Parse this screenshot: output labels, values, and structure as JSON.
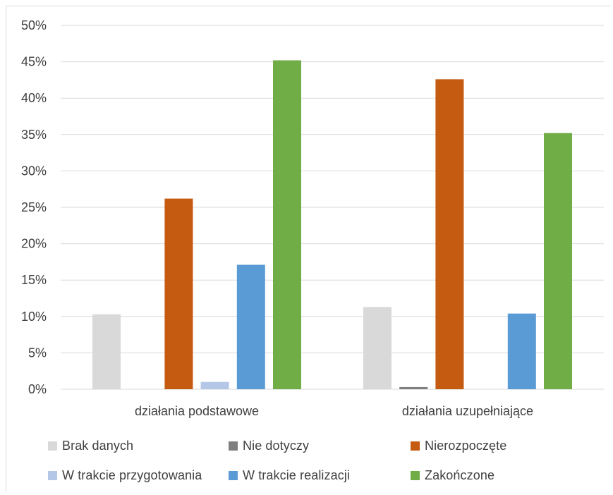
{
  "chart_data": {
    "type": "bar",
    "categories": [
      "działania podstawowe",
      "działania uzupełniające"
    ],
    "series": [
      {
        "name": "Brak danych",
        "values": [
          10.3,
          11.3
        ],
        "color": "#d9d9d9"
      },
      {
        "name": "Nie dotyczy",
        "values": [
          0,
          0.3
        ],
        "color": "#7f7f7f"
      },
      {
        "name": "Nierozpoczęte",
        "values": [
          26.2,
          42.6
        ],
        "color": "#c55a11"
      },
      {
        "name": "W trakcie przygotowania",
        "values": [
          1.0,
          0
        ],
        "color": "#b4c7e7"
      },
      {
        "name": "W trakcie realizacji",
        "values": [
          17.1,
          10.4
        ],
        "color": "#5b9bd5"
      },
      {
        "name": "Zakończone",
        "values": [
          45.2,
          35.2
        ],
        "color": "#70ad47"
      }
    ],
    "y_ticks": [
      "0%",
      "5%",
      "10%",
      "15%",
      "20%",
      "25%",
      "30%",
      "35%",
      "40%",
      "45%",
      "50%"
    ],
    "ylim": [
      0,
      50
    ],
    "grid": true,
    "legend_position": "bottom"
  }
}
